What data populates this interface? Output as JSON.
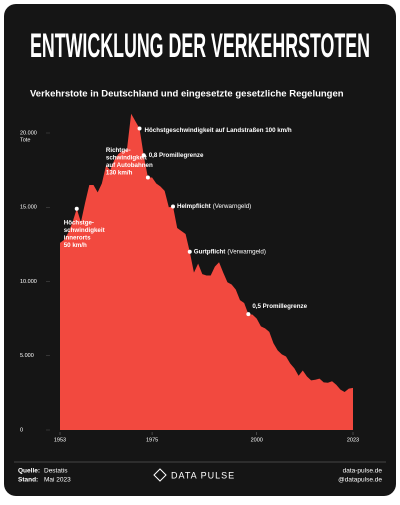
{
  "chart_data": {
    "type": "area",
    "title": "ENTWICKLUNG DER VERKEHRSTOTEN",
    "subtitle": "Verkehrstote in Deutschland und eingesetzte gesetzliche Regelungen",
    "ylabel": "Tote",
    "x": [
      1953,
      1954,
      1955,
      1956,
      1957,
      1958,
      1959,
      1960,
      1961,
      1962,
      1963,
      1964,
      1965,
      1966,
      1967,
      1968,
      1969,
      1970,
      1971,
      1972,
      1973,
      1974,
      1975,
      1976,
      1977,
      1978,
      1979,
      1980,
      1981,
      1982,
      1983,
      1984,
      1985,
      1986,
      1987,
      1988,
      1989,
      1990,
      1991,
      1992,
      1993,
      1994,
      1995,
      1996,
      1997,
      1998,
      1999,
      2000,
      2001,
      2002,
      2003,
      2004,
      2005,
      2006,
      2007,
      2008,
      2009,
      2010,
      2011,
      2012,
      2013,
      2014,
      2015,
      2016,
      2017,
      2018,
      2019,
      2020,
      2021,
      2022,
      2023
    ],
    "series": [
      {
        "color": "#f2493f",
        "values": [
          12600,
          12800,
          13300,
          14000,
          14900,
          14000,
          15300,
          16500,
          16500,
          16000,
          16600,
          17800,
          17500,
          18200,
          18600,
          18800,
          18900,
          21300,
          20800,
          20300,
          18500,
          17000,
          17000,
          16600,
          16400,
          16100,
          15000,
          15050,
          13600,
          13400,
          13200,
          12000,
          10600,
          11200,
          10500,
          10400,
          10400,
          11000,
          11300,
          10600,
          9950,
          9800,
          9450,
          8750,
          8550,
          7800,
          7770,
          7500,
          6980,
          6840,
          6610,
          5840,
          5360,
          5090,
          4950,
          4480,
          4150,
          3650,
          4010,
          3600,
          3340,
          3380,
          3460,
          3210,
          3180,
          3280,
          3050,
          2720,
          2560,
          2790,
          2840
        ]
      }
    ],
    "xlim": [
      1953,
      2023
    ],
    "xticks": [
      1953,
      1975,
      2000,
      2023
    ],
    "ylim": [
      0,
      20000
    ],
    "yticks": [
      0,
      {
        "value": 5000,
        "label": "5.000"
      },
      {
        "value": 10000,
        "label": "10.000"
      },
      {
        "value": 15000,
        "label": "15.000"
      },
      {
        "value": 20000,
        "label": "20.000"
      }
    ],
    "grid": false,
    "annotations": [
      {
        "x": 1957,
        "lines": [
          "Höchstge-",
          "schwindigkeit",
          "innerorts",
          "50 km/h"
        ]
      },
      {
        "x": 1972,
        "lines": [
          "Höchstgeschwindigkeit auf Landstraßen 100 km/h"
        ]
      },
      {
        "x": 1973,
        "lines": [
          "0,8 Promillegrenze"
        ]
      },
      {
        "x": 1974,
        "lines": [
          "Richtge-",
          "schwindigkeit",
          "auf Autobahnen",
          "130 km/h"
        ]
      },
      {
        "x": 1980,
        "lines": [
          "Helmpflicht"
        ],
        "note": "(Verwarngeld)"
      },
      {
        "x": 1984,
        "lines": [
          "Gurtpflicht"
        ],
        "note": "(Verwarngeld)"
      },
      {
        "x": 1998,
        "lines": [
          "0,5 Promillegrenze"
        ]
      }
    ]
  },
  "footer": {
    "source_label": "Quelle:",
    "source": "Destatis",
    "date_label": "Stand:",
    "date": "Mai 2023",
    "logo": "DATA PULSE",
    "site": "data-pulse.de",
    "handle": "@datapulse.de"
  }
}
